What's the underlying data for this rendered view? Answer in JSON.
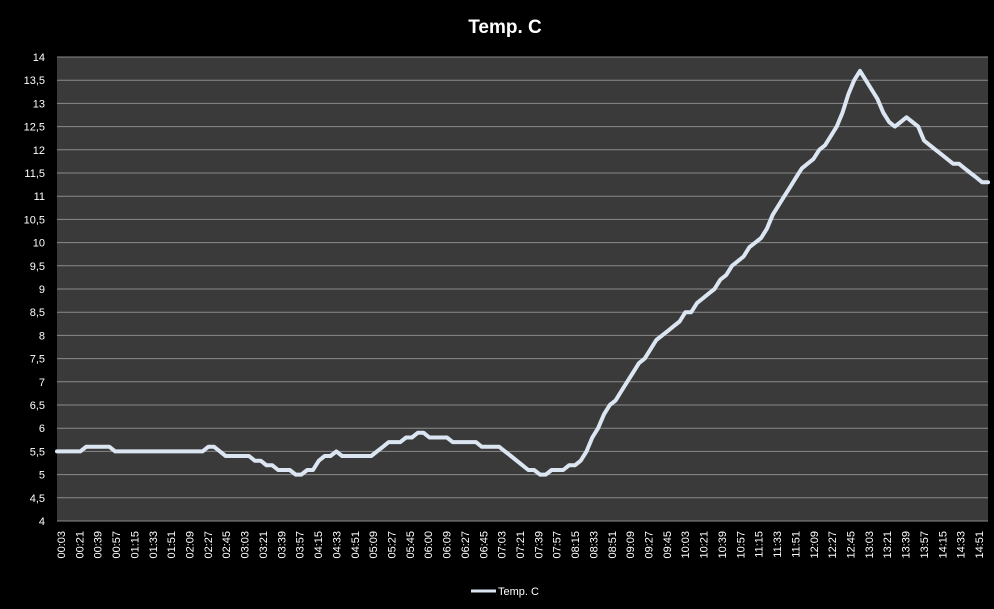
{
  "chart_data": {
    "type": "line",
    "title": "Temp. C",
    "xlabel": "",
    "ylabel": "",
    "ylim": [
      4,
      14
    ],
    "ytick_step": 0.5,
    "yticks": [
      "4",
      "4,5",
      "5",
      "5,5",
      "6",
      "6,5",
      "7",
      "7,5",
      "8",
      "8,5",
      "9",
      "9,5",
      "10",
      "10,5",
      "11",
      "11,5",
      "12",
      "12,5",
      "13",
      "13,5",
      "14"
    ],
    "xticks": [
      "00:03",
      "00:21",
      "00:39",
      "00:57",
      "01:15",
      "01:33",
      "01:51",
      "02:09",
      "02:27",
      "02:45",
      "03:03",
      "03:21",
      "03:39",
      "03:57",
      "04:15",
      "04:33",
      "04:51",
      "05:09",
      "05:27",
      "05:45",
      "06:00",
      "06:09",
      "06:27",
      "06:45",
      "07:03",
      "07:21",
      "07:39",
      "07:57",
      "08:15",
      "08:33",
      "08:51",
      "09:09",
      "09:27",
      "09:45",
      "10:03",
      "10:21",
      "10:39",
      "10:57",
      "11:15",
      "11:33",
      "11:51",
      "12:09",
      "12:27",
      "12:45",
      "13:03",
      "13:21",
      "13:39",
      "13:57",
      "14:15",
      "14:33",
      "14:51"
    ],
    "grid": true,
    "legend_position": "bottom",
    "colors": {
      "background": "#000000",
      "plot_area": "#3a3a3a",
      "gridline": "#8a8a8a",
      "series": "#dce6f2",
      "text": "#ffffff"
    },
    "series": [
      {
        "name": "Temp. C",
        "values": [
          5.5,
          5.5,
          5.5,
          5.5,
          5.5,
          5.6,
          5.6,
          5.6,
          5.6,
          5.6,
          5.5,
          5.5,
          5.5,
          5.5,
          5.5,
          5.5,
          5.5,
          5.5,
          5.5,
          5.5,
          5.5,
          5.5,
          5.5,
          5.5,
          5.5,
          5.5,
          5.6,
          5.6,
          5.5,
          5.4,
          5.4,
          5.4,
          5.4,
          5.4,
          5.3,
          5.3,
          5.2,
          5.2,
          5.1,
          5.1,
          5.1,
          5.0,
          5.0,
          5.1,
          5.1,
          5.3,
          5.4,
          5.4,
          5.5,
          5.4,
          5.4,
          5.4,
          5.4,
          5.4,
          5.4,
          5.5,
          5.6,
          5.7,
          5.7,
          5.7,
          5.8,
          5.8,
          5.9,
          5.9,
          5.8,
          5.8,
          5.8,
          5.8,
          5.7,
          5.7,
          5.7,
          5.7,
          5.7,
          5.6,
          5.6,
          5.6,
          5.6,
          5.5,
          5.4,
          5.3,
          5.2,
          5.1,
          5.1,
          5.0,
          5.0,
          5.1,
          5.1,
          5.1,
          5.2,
          5.2,
          5.3,
          5.5,
          5.8,
          6.0,
          6.3,
          6.5,
          6.6,
          6.8,
          7.0,
          7.2,
          7.4,
          7.5,
          7.7,
          7.9,
          8.0,
          8.1,
          8.2,
          8.3,
          8.5,
          8.5,
          8.7,
          8.8,
          8.9,
          9.0,
          9.2,
          9.3,
          9.5,
          9.6,
          9.7,
          9.9,
          10.0,
          10.1,
          10.3,
          10.6,
          10.8,
          11.0,
          11.2,
          11.4,
          11.6,
          11.7,
          11.8,
          12.0,
          12.1,
          12.3,
          12.5,
          12.8,
          13.2,
          13.5,
          13.7,
          13.5,
          13.3,
          13.1,
          12.8,
          12.6,
          12.5,
          12.6,
          12.7,
          12.6,
          12.5,
          12.2,
          12.1,
          12.0,
          11.9,
          11.8,
          11.7,
          11.7,
          11.6,
          11.5,
          11.4,
          11.3,
          11.3
        ]
      }
    ]
  }
}
